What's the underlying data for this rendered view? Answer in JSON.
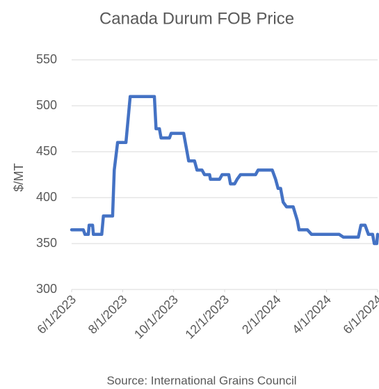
{
  "chart_data": {
    "type": "line",
    "title": "Canada Durum FOB Price",
    "ylabel": "$/MT",
    "source": "Source: International Grains Council",
    "color": "#4472c4",
    "grid": true,
    "ylim": [
      300,
      550
    ],
    "yticks": [
      300,
      350,
      400,
      450,
      500,
      550
    ],
    "xlim": [
      "2023-06-01",
      "2024-06-01"
    ],
    "xticks": [
      {
        "value": "2023-06-01",
        "label": "6/1/2023"
      },
      {
        "value": "2023-08-01",
        "label": "8/1/2023"
      },
      {
        "value": "2023-10-01",
        "label": "10/1/2023"
      },
      {
        "value": "2023-12-01",
        "label": "12/1/2023"
      },
      {
        "value": "2024-02-01",
        "label": "2/1/2024"
      },
      {
        "value": "2024-04-01",
        "label": "4/1/2024"
      },
      {
        "value": "2024-06-01",
        "label": "6/1/2024"
      }
    ],
    "x": [
      "2023-06-01",
      "2023-06-15",
      "2023-06-17",
      "2023-06-21",
      "2023-06-22",
      "2023-06-26",
      "2023-06-27",
      "2023-07-07",
      "2023-07-09",
      "2023-07-20",
      "2023-07-22",
      "2023-07-26",
      "2023-08-05",
      "2023-08-10",
      "2023-09-08",
      "2023-09-10",
      "2023-09-14",
      "2023-09-16",
      "2023-09-26",
      "2023-09-28",
      "2023-10-13",
      "2023-10-16",
      "2023-10-19",
      "2023-10-26",
      "2023-10-29",
      "2023-11-04",
      "2023-11-07",
      "2023-11-13",
      "2023-11-14",
      "2023-11-25",
      "2023-11-28",
      "2023-12-06",
      "2023-12-08",
      "2023-12-13",
      "2023-12-16",
      "2023-12-20",
      "2024-01-07",
      "2024-01-10",
      "2024-01-27",
      "2024-01-31",
      "2024-02-03",
      "2024-02-06",
      "2024-02-09",
      "2024-02-13",
      "2024-02-21",
      "2024-02-26",
      "2024-02-28",
      "2024-03-09",
      "2024-03-14",
      "2024-04-16",
      "2024-04-21",
      "2024-05-09",
      "2024-05-12",
      "2024-05-17",
      "2024-05-21",
      "2024-05-26",
      "2024-05-28",
      "2024-05-31",
      "2024-06-01"
    ],
    "values": [
      365,
      365,
      360,
      360,
      370,
      370,
      360,
      360,
      380,
      380,
      430,
      460,
      460,
      510,
      510,
      475,
      475,
      465,
      465,
      470,
      470,
      455,
      440,
      440,
      430,
      430,
      425,
      425,
      420,
      420,
      425,
      425,
      415,
      415,
      420,
      425,
      425,
      430,
      430,
      420,
      410,
      410,
      395,
      390,
      390,
      375,
      365,
      365,
      360,
      360,
      357,
      357,
      370,
      370,
      360,
      360,
      350,
      350,
      360
    ]
  }
}
